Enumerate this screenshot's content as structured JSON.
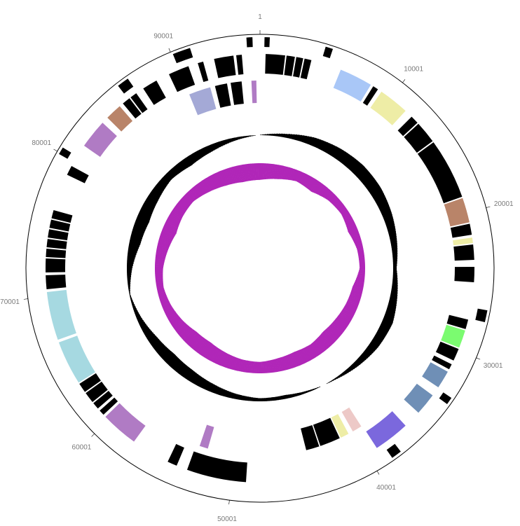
{
  "map": {
    "genome_length": 96000,
    "coordinate_labels": [
      "1",
      "10001",
      "20001",
      "30001",
      "40001",
      "50001",
      "60001",
      "70001",
      "80001",
      "90001"
    ]
  },
  "colors": {
    "cds": "#000000",
    "slate_blue": "#a4a9d6",
    "light_blue": "#a9c7f7",
    "pale_yellow": "#eeeda6",
    "brown": "#b98469",
    "orchid": "#b07bc4",
    "green": "#7bfb70",
    "steel_blue": "#6f8fb6",
    "pink": "#edc9c7",
    "purple_blue": "#7b68dd",
    "powder_blue": "#a6d9e1",
    "gc_skew": "#000000",
    "gc_content": "#b026b8"
  },
  "tracks": {
    "outer": [
      {
        "start": 26800,
        "end": 27600,
        "color": "cds"
      },
      {
        "start": 33100,
        "end": 33600,
        "color": "cds"
      },
      {
        "start": 38000,
        "end": 38700,
        "color": "cds"
      },
      {
        "start": 79900,
        "end": 80400,
        "color": "cds"
      },
      {
        "start": 85900,
        "end": 86700,
        "color": "cds"
      },
      {
        "start": 90100,
        "end": 91300,
        "color": "cds"
      },
      {
        "start": 95100,
        "end": 95500,
        "color": "cds"
      },
      {
        "start": 300,
        "end": 650,
        "color": "cds"
      },
      {
        "start": 4400,
        "end": 4900,
        "color": "cds"
      }
    ],
    "middle": [
      {
        "start": 400,
        "end": 1800,
        "color": "cds"
      },
      {
        "start": 1900,
        "end": 2500,
        "color": "cds"
      },
      {
        "start": 2600,
        "end": 3100,
        "color": "cds"
      },
      {
        "start": 3200,
        "end": 3700,
        "color": "cds"
      },
      {
        "start": 5900,
        "end": 8300,
        "color": "light_blue"
      },
      {
        "start": 8500,
        "end": 8900,
        "color": "cds"
      },
      {
        "start": 9200,
        "end": 11400,
        "color": "pale_yellow"
      },
      {
        "start": 12000,
        "end": 12600,
        "color": "cds"
      },
      {
        "start": 12700,
        "end": 14300,
        "color": "cds"
      },
      {
        "start": 14400,
        "end": 18800,
        "color": "cds"
      },
      {
        "start": 18900,
        "end": 20700,
        "color": "brown"
      },
      {
        "start": 20800,
        "end": 21600,
        "color": "cds"
      },
      {
        "start": 21800,
        "end": 22200,
        "color": "pale_yellow"
      },
      {
        "start": 22300,
        "end": 23400,
        "color": "cds"
      },
      {
        "start": 23900,
        "end": 25000,
        "color": "cds"
      },
      {
        "start": 27700,
        "end": 28400,
        "color": "cds"
      },
      {
        "start": 28500,
        "end": 29800,
        "color": "green"
      },
      {
        "start": 29900,
        "end": 30800,
        "color": "cds"
      },
      {
        "start": 31100,
        "end": 31500,
        "color": "cds"
      },
      {
        "start": 31700,
        "end": 33000,
        "color": "steel_blue"
      },
      {
        "start": 33700,
        "end": 35300,
        "color": "steel_blue"
      },
      {
        "start": 36600,
        "end": 39200,
        "color": "purple_blue"
      },
      {
        "start": 49000,
        "end": 53300,
        "color": "cds"
      },
      {
        "start": 54100,
        "end": 54800,
        "color": "cds"
      },
      {
        "start": 57600,
        "end": 60300,
        "color": "orchid"
      },
      {
        "start": 60500,
        "end": 60900,
        "color": "cds"
      },
      {
        "start": 61100,
        "end": 61600,
        "color": "cds"
      },
      {
        "start": 61700,
        "end": 62500,
        "color": "cds"
      },
      {
        "start": 62600,
        "end": 63300,
        "color": "cds"
      },
      {
        "start": 63400,
        "end": 66600,
        "color": "powder_blue"
      },
      {
        "start": 66800,
        "end": 70300,
        "color": "powder_blue"
      },
      {
        "start": 70500,
        "end": 71500,
        "color": "cds"
      },
      {
        "start": 71700,
        "end": 72700,
        "color": "cds"
      },
      {
        "start": 72800,
        "end": 73400,
        "color": "cds"
      },
      {
        "start": 73500,
        "end": 74100,
        "color": "cds"
      },
      {
        "start": 74200,
        "end": 74800,
        "color": "cds"
      },
      {
        "start": 74900,
        "end": 75500,
        "color": "cds"
      },
      {
        "start": 75600,
        "end": 76200,
        "color": "cds"
      },
      {
        "start": 78900,
        "end": 79600,
        "color": "cds"
      },
      {
        "start": 81300,
        "end": 83400,
        "color": "orchid"
      },
      {
        "start": 83900,
        "end": 85100,
        "color": "brown"
      },
      {
        "start": 85400,
        "end": 86000,
        "color": "cds"
      },
      {
        "start": 86100,
        "end": 86600,
        "color": "cds"
      },
      {
        "start": 87200,
        "end": 88300,
        "color": "cds"
      },
      {
        "start": 89300,
        "end": 90800,
        "color": "cds"
      },
      {
        "start": 91500,
        "end": 91900,
        "color": "cds"
      },
      {
        "start": 92700,
        "end": 94100,
        "color": "cds"
      },
      {
        "start": 94300,
        "end": 94700,
        "color": "cds"
      }
    ],
    "inner": [
      {
        "start": 90100,
        "end": 91900,
        "color": "slate_blue"
      },
      {
        "start": 92300,
        "end": 93300,
        "color": "cds"
      },
      {
        "start": 93600,
        "end": 94500,
        "color": "cds"
      },
      {
        "start": 95300,
        "end": 95700,
        "color": "orchid"
      },
      {
        "start": 41300,
        "end": 43000,
        "color": "cds"
      },
      {
        "start": 43100,
        "end": 44200,
        "color": "cds"
      },
      {
        "start": 40500,
        "end": 41200,
        "color": "pale_yellow"
      },
      {
        "start": 39300,
        "end": 40100,
        "color": "pink"
      },
      {
        "start": 52300,
        "end": 53000,
        "color": "orchid"
      }
    ]
  },
  "gc_skew": {
    "description_values": [
      {
        "pos": 0,
        "value": 0.02
      },
      {
        "pos": 3000,
        "value": 0.25
      },
      {
        "pos": 6000,
        "value": 0.55
      },
      {
        "pos": 9000,
        "value": 0.72
      },
      {
        "pos": 12000,
        "value": 0.82
      },
      {
        "pos": 15000,
        "value": 0.78
      },
      {
        "pos": 18000,
        "value": 0.62
      },
      {
        "pos": 21000,
        "value": 0.42
      },
      {
        "pos": 24000,
        "value": 0.22
      },
      {
        "pos": 27000,
        "value": 0.45
      },
      {
        "pos": 30000,
        "value": 0.68
      },
      {
        "pos": 33000,
        "value": 0.58
      },
      {
        "pos": 36000,
        "value": 0.35
      },
      {
        "pos": 39000,
        "value": 0.08
      },
      {
        "pos": 42000,
        "value": -0.1
      },
      {
        "pos": 45000,
        "value": -0.25
      },
      {
        "pos": 48000,
        "value": -0.2
      },
      {
        "pos": 51000,
        "value": -0.35
      },
      {
        "pos": 54000,
        "value": -0.55
      },
      {
        "pos": 57000,
        "value": -0.72
      },
      {
        "pos": 60000,
        "value": -0.78
      },
      {
        "pos": 63000,
        "value": -0.6
      },
      {
        "pos": 66000,
        "value": -0.3
      },
      {
        "pos": 69000,
        "value": -0.05
      },
      {
        "pos": 72000,
        "value": -0.35
      },
      {
        "pos": 75000,
        "value": -0.72
      },
      {
        "pos": 78000,
        "value": -0.85
      },
      {
        "pos": 81000,
        "value": -0.7
      },
      {
        "pos": 84000,
        "value": -0.5
      },
      {
        "pos": 87000,
        "value": -0.62
      },
      {
        "pos": 90000,
        "value": -0.45
      },
      {
        "pos": 93000,
        "value": -0.2
      }
    ]
  },
  "gc_content": {
    "values": [
      {
        "pos": 0,
        "value": 0.85
      },
      {
        "pos": 3000,
        "value": 0.72
      },
      {
        "pos": 6000,
        "value": 0.55
      },
      {
        "pos": 9000,
        "value": 0.66
      },
      {
        "pos": 12000,
        "value": 0.45
      },
      {
        "pos": 15000,
        "value": 0.38
      },
      {
        "pos": 18000,
        "value": 0.5
      },
      {
        "pos": 21000,
        "value": 0.32
      },
      {
        "pos": 24000,
        "value": 0.28
      },
      {
        "pos": 27000,
        "value": 0.55
      },
      {
        "pos": 30000,
        "value": 0.62
      },
      {
        "pos": 33000,
        "value": 0.72
      },
      {
        "pos": 36000,
        "value": 0.8
      },
      {
        "pos": 39000,
        "value": 0.7
      },
      {
        "pos": 42000,
        "value": 0.75
      },
      {
        "pos": 45000,
        "value": 0.68
      },
      {
        "pos": 48000,
        "value": 0.58
      },
      {
        "pos": 51000,
        "value": 0.62
      },
      {
        "pos": 54000,
        "value": 0.72
      },
      {
        "pos": 57000,
        "value": 0.82
      },
      {
        "pos": 60000,
        "value": 0.78
      },
      {
        "pos": 63000,
        "value": 0.6
      },
      {
        "pos": 66000,
        "value": 0.45
      },
      {
        "pos": 69000,
        "value": 0.35
      },
      {
        "pos": 72000,
        "value": 0.42
      },
      {
        "pos": 75000,
        "value": 0.58
      },
      {
        "pos": 78000,
        "value": 0.74
      },
      {
        "pos": 81000,
        "value": 0.62
      },
      {
        "pos": 84000,
        "value": 0.55
      },
      {
        "pos": 87000,
        "value": 0.68
      },
      {
        "pos": 90000,
        "value": 0.8
      },
      {
        "pos": 93000,
        "value": 0.88
      }
    ]
  }
}
